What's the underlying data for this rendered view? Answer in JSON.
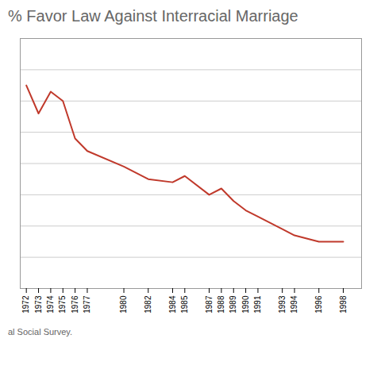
{
  "chart_data": {
    "type": "line",
    "title": "% Favor Law Against Interracial Marriage",
    "caption": "al Social Survey.",
    "x": [
      1972,
      1973,
      1974,
      1975,
      1976,
      1977,
      1980,
      1982,
      1984,
      1985,
      1987,
      1988,
      1989,
      1990,
      1991,
      1993,
      1994,
      1996,
      1998
    ],
    "values": [
      65,
      56,
      63,
      60,
      48,
      44,
      39,
      35,
      34,
      36,
      30,
      32,
      28,
      25,
      23,
      19,
      17,
      15,
      15
    ],
    "color": "#C0392B",
    "xlim": [
      1971.5,
      1999.5
    ],
    "xticks": [
      1972,
      1973,
      1974,
      1975,
      1976,
      1977,
      1980,
      1982,
      1984,
      1985,
      1987,
      1988,
      1989,
      1990,
      1991,
      1993,
      1994,
      1996,
      1998
    ],
    "ylim": [
      0,
      80
    ],
    "yticks": [
      0,
      10,
      20,
      30,
      40,
      50,
      60,
      70,
      80
    ],
    "grid": true,
    "tick_labels": "x"
  }
}
